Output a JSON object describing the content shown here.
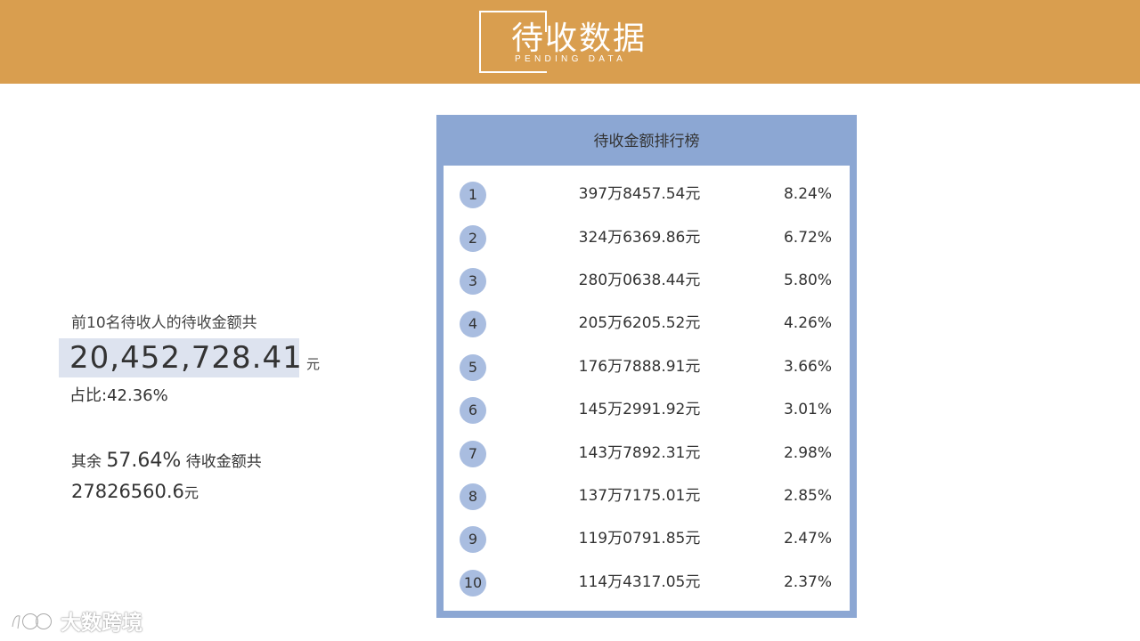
{
  "header": {
    "title": "待收数据",
    "subtitle": "PENDING DATA",
    "band_color": "#d99e4f"
  },
  "summary": {
    "top10_label": "前10名待收人的待收金额共",
    "top10_amount": "20,452,728.41",
    "unit": "元",
    "ratio_label": "占比:",
    "ratio_value": "42.36%",
    "rest_prefix": "其余",
    "rest_percent": "57.64%",
    "rest_suffix": "待收金额共",
    "rest_amount": "27826560.6",
    "rest_unit": "元"
  },
  "ranking": {
    "title": "待收金额排行榜",
    "accent_color": "#8ca7d3",
    "badge_color": "#a9bde0",
    "rows": [
      {
        "rank": "1",
        "amount": "397万8457.54元",
        "percent": "8.24%"
      },
      {
        "rank": "2",
        "amount": "324万6369.86元",
        "percent": "6.72%"
      },
      {
        "rank": "3",
        "amount": "280万0638.44元",
        "percent": "5.80%"
      },
      {
        "rank": "4",
        "amount": "205万6205.52元",
        "percent": "4.26%"
      },
      {
        "rank": "5",
        "amount": "176万7888.91元",
        "percent": "3.66%"
      },
      {
        "rank": "6",
        "amount": "145万2991.92元",
        "percent": "3.01%"
      },
      {
        "rank": "7",
        "amount": "143万7892.31元",
        "percent": "2.98%"
      },
      {
        "rank": "8",
        "amount": "137万7175.01元",
        "percent": "2.85%"
      },
      {
        "rank": "9",
        "amount": "119万0791.85元",
        "percent": "2.47%"
      },
      {
        "rank": "10",
        "amount": "114万4317.05元",
        "percent": "2.37%"
      }
    ]
  },
  "watermark": {
    "logo_icon": "dashu-logo-icon",
    "text": "大数跨境"
  }
}
